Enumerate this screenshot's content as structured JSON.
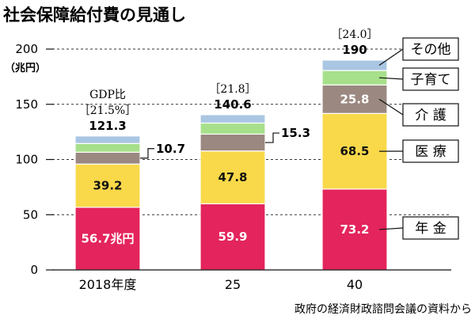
{
  "chart_data": {
    "type": "bar",
    "stacked": true,
    "title": "社会保障給付費の見通し",
    "ylabel_top": "200",
    "ylabel_unit": "（兆円）",
    "ylim": [
      0,
      200
    ],
    "yticks": [
      0,
      50,
      100,
      150,
      200
    ],
    "categories": [
      "2018年度",
      "25",
      "40"
    ],
    "series": [
      {
        "name": "年金",
        "legend_text": "年 金",
        "color": "#e4245c",
        "values": [
          56.7,
          59.9,
          73.2
        ],
        "labels": [
          "56.7兆円",
          "59.9",
          "73.2"
        ]
      },
      {
        "name": "医療",
        "legend_text": "医 療",
        "color": "#f9d94a",
        "values": [
          39.2,
          47.8,
          68.5
        ],
        "labels": [
          "39.2",
          "47.8",
          "68.5"
        ]
      },
      {
        "name": "介護",
        "legend_text": "介 護",
        "color": "#9b8880",
        "values": [
          10.7,
          15.3,
          25.8
        ],
        "labels": [
          "10.7",
          "15.3",
          "25.8"
        ]
      },
      {
        "name": "子育て",
        "legend_text": "子育て",
        "color": "#a7e08a",
        "values": [
          7.9,
          10.0,
          13.1
        ]
      },
      {
        "name": "その他",
        "legend_text": "その他",
        "color": "#a9c6e2",
        "values": [
          6.8,
          7.6,
          9.4
        ]
      }
    ],
    "totals": [
      "121.3",
      "140.6",
      "190"
    ],
    "gdp_ratio_label": "GDP比",
    "gdp_ratios": [
      "［21.5%］",
      "［21.8］",
      "［24.0］"
    ],
    "source": "政府の経済財政諮問会議の資料から"
  }
}
